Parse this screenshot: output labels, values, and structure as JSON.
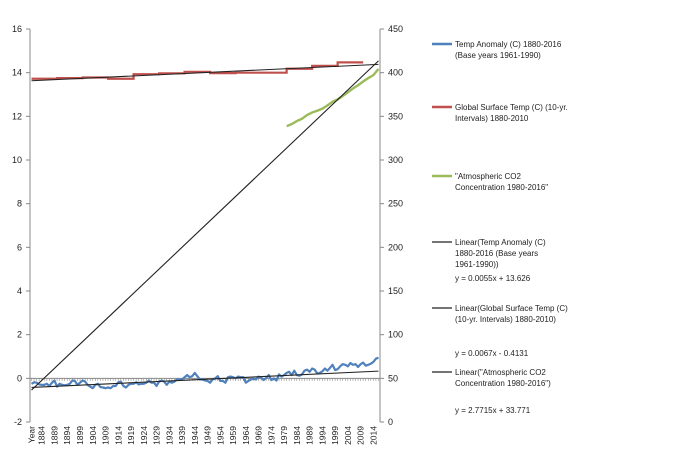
{
  "chart_data": {
    "type": "line",
    "title": "",
    "x_tick_labels": [
      "Year",
      "1884",
      "1889",
      "1894",
      "1899",
      "1904",
      "1909",
      "1914",
      "1919",
      "1924",
      "1929",
      "1934",
      "1939",
      "1944",
      "1949",
      "1954",
      "1959",
      "1964",
      "1969",
      "1974",
      "1979",
      "1984",
      "1989",
      "1994",
      "1999",
      "2004",
      "2009",
      "2014"
    ],
    "y_left": {
      "range": [
        -2,
        16
      ],
      "ticks": [
        "-2",
        "0",
        "2",
        "4",
        "6",
        "8",
        "10",
        "12",
        "14",
        "16"
      ]
    },
    "y_right": {
      "range": [
        0,
        450
      ],
      "ticks": [
        "0",
        "50",
        "100",
        "150",
        "200",
        "250",
        "300",
        "350",
        "400",
        "450"
      ]
    },
    "grid": false,
    "legend_position": "right",
    "series": [
      {
        "name": "Temp Anomaly (C) 1880-2016 (Base years 1961-1990)",
        "axis": "left",
        "color": "#4f81bd",
        "x": [
          1880,
          1881,
          1882,
          1883,
          1884,
          1885,
          1886,
          1887,
          1888,
          1889,
          1890,
          1891,
          1892,
          1893,
          1894,
          1895,
          1896,
          1897,
          1898,
          1899,
          1900,
          1901,
          1902,
          1903,
          1904,
          1905,
          1906,
          1907,
          1908,
          1909,
          1910,
          1911,
          1912,
          1913,
          1914,
          1915,
          1916,
          1917,
          1918,
          1919,
          1920,
          1921,
          1922,
          1923,
          1924,
          1925,
          1926,
          1927,
          1928,
          1929,
          1930,
          1931,
          1932,
          1933,
          1934,
          1935,
          1936,
          1937,
          1938,
          1939,
          1940,
          1941,
          1942,
          1943,
          1944,
          1945,
          1946,
          1947,
          1948,
          1949,
          1950,
          1951,
          1952,
          1953,
          1954,
          1955,
          1956,
          1957,
          1958,
          1959,
          1960,
          1961,
          1962,
          1963,
          1964,
          1965,
          1966,
          1967,
          1968,
          1969,
          1970,
          1971,
          1972,
          1973,
          1974,
          1975,
          1976,
          1977,
          1978,
          1979,
          1980,
          1981,
          1982,
          1983,
          1984,
          1985,
          1986,
          1987,
          1988,
          1989,
          1990,
          1991,
          1992,
          1993,
          1994,
          1995,
          1996,
          1997,
          1998,
          1999,
          2000,
          2001,
          2002,
          2003,
          2004,
          2005,
          2006,
          2007,
          2008,
          2009,
          2010,
          2011,
          2012,
          2013,
          2014,
          2015,
          2016
        ],
        "values": [
          -0.25,
          -0.18,
          -0.2,
          -0.28,
          -0.3,
          -0.3,
          -0.25,
          -0.35,
          -0.2,
          -0.1,
          -0.38,
          -0.25,
          -0.3,
          -0.32,
          -0.3,
          -0.25,
          -0.1,
          -0.12,
          -0.3,
          -0.2,
          -0.1,
          -0.15,
          -0.3,
          -0.38,
          -0.45,
          -0.3,
          -0.25,
          -0.4,
          -0.42,
          -0.45,
          -0.42,
          -0.45,
          -0.35,
          -0.35,
          -0.18,
          -0.15,
          -0.35,
          -0.42,
          -0.3,
          -0.25,
          -0.25,
          -0.18,
          -0.28,
          -0.25,
          -0.25,
          -0.2,
          -0.1,
          -0.2,
          -0.2,
          -0.35,
          -0.15,
          -0.1,
          -0.15,
          -0.3,
          -0.15,
          -0.2,
          -0.15,
          -0.05,
          -0.05,
          -0.05,
          0.05,
          0.15,
          0.05,
          0.1,
          0.25,
          0.1,
          -0.05,
          -0.05,
          -0.1,
          -0.12,
          -0.2,
          -0.05,
          0.0,
          0.1,
          -0.12,
          -0.12,
          -0.2,
          0.05,
          0.08,
          0.05,
          0.0,
          0.08,
          0.05,
          0.05,
          -0.2,
          -0.12,
          -0.05,
          -0.02,
          -0.05,
          0.08,
          0.03,
          -0.08,
          0.02,
          0.15,
          -0.08,
          0.0,
          -0.1,
          0.18,
          0.08,
          0.15,
          0.25,
          0.3,
          0.15,
          0.35,
          0.15,
          0.12,
          0.18,
          0.35,
          0.4,
          0.3,
          0.45,
          0.4,
          0.22,
          0.25,
          0.32,
          0.45,
          0.35,
          0.48,
          0.62,
          0.38,
          0.42,
          0.55,
          0.65,
          0.62,
          0.55,
          0.7,
          0.62,
          0.65,
          0.52,
          0.65,
          0.72,
          0.58,
          0.62,
          0.67,
          0.75,
          0.9,
          0.95
        ]
      },
      {
        "name": "Global Surface Temp (C) (10-yr. Intervals) 1880-2010",
        "axis": "left",
        "color": "#c0504d",
        "steps": [
          {
            "from": 1880,
            "to": 1890,
            "value": 13.72
          },
          {
            "from": 1890,
            "to": 1900,
            "value": 13.75
          },
          {
            "from": 1900,
            "to": 1910,
            "value": 13.78
          },
          {
            "from": 1910,
            "to": 1920,
            "value": 13.72
          },
          {
            "from": 1920,
            "to": 1930,
            "value": 13.93
          },
          {
            "from": 1930,
            "to": 1940,
            "value": 13.97
          },
          {
            "from": 1940,
            "to": 1950,
            "value": 14.04
          },
          {
            "from": 1950,
            "to": 1960,
            "value": 13.98
          },
          {
            "from": 1960,
            "to": 1970,
            "value": 14.0
          },
          {
            "from": 1970,
            "to": 1980,
            "value": 14.0
          },
          {
            "from": 1980,
            "to": 1990,
            "value": 14.18
          },
          {
            "from": 1990,
            "to": 2000,
            "value": 14.31
          },
          {
            "from": 2000,
            "to": 2010,
            "value": 14.47
          }
        ]
      },
      {
        "name": "\"Atmospheric CO2 Concentration 1980-2016\"",
        "axis": "right",
        "color": "#9bbb59",
        "x": [
          1980,
          1982,
          1984,
          1986,
          1988,
          1990,
          1992,
          1994,
          1996,
          1998,
          2000,
          2002,
          2004,
          2006,
          2008,
          2010,
          2012,
          2014,
          2016
        ],
        "values": [
          338.7,
          341.1,
          344.6,
          347.2,
          351.5,
          354.4,
          356.4,
          358.8,
          362.6,
          366.7,
          369.4,
          373.2,
          377.5,
          381.9,
          385.6,
          389.9,
          393.8,
          397.2,
          404.2
        ]
      }
    ],
    "trendlines": [
      {
        "name": "Linear(Temp Anomaly (C) 1880-2016 (Base years 1961-1990))",
        "equation": "y = 0.0055x + 13.626",
        "color": "#222222"
      },
      {
        "name": "Linear(Global Surface Temp (C) (10-yr. Intervals) 1880-2010)",
        "equation": "y = 0.0067x - 0.4131",
        "color": "#222222"
      },
      {
        "name": "Linear(\"Atmospheric CO2 Concentration 1980-2016\")",
        "equation": "y = 2.7715x + 33.771",
        "color": "#222222"
      }
    ],
    "legend": [
      {
        "label_lines": [
          "Temp Anomaly (C) 1880-2016",
          "(Base years 1961-1990)"
        ],
        "color": "#4f81bd"
      },
      {
        "label_lines": [
          "Global Surface Temp (C) (10-yr.",
          "Intervals) 1880-2010"
        ],
        "color": "#c0504d"
      },
      {
        "label_lines": [
          "\"Atmospheric CO2",
          "Concentration 1980-2016\""
        ],
        "color": "#9bbb59"
      },
      {
        "label_lines": [
          "Linear(Temp Anomaly (C)",
          "1880-2016 (Base years",
          "1961-1990))"
        ],
        "color": "#222222",
        "equation": "y = 0.0055x + 13.626"
      },
      {
        "label_lines": [
          "Linear(Global Surface Temp (C)",
          "(10-yr. Intervals) 1880-2010)"
        ],
        "color": "#222222",
        "equation": "y = 0.0067x - 0.4131"
      },
      {
        "label_lines": [
          "Linear(\"Atmospheric CO2",
          "Concentration 1980-2016\")"
        ],
        "color": "#222222",
        "equation": "y = 2.7715x + 33.771"
      }
    ]
  }
}
